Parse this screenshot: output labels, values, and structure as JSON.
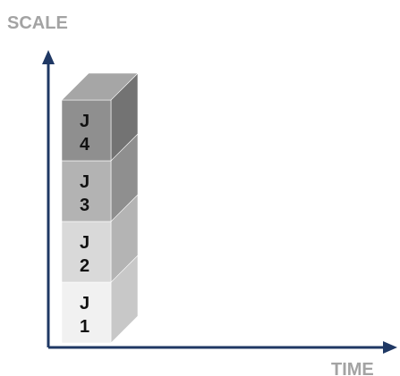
{
  "axes": {
    "y_title": "SCALE",
    "x_title": "TIME",
    "title_color": "#a3a3a3",
    "axis_color": "#1f3864"
  },
  "blocks": [
    {
      "prefix": "J",
      "number": "1",
      "front": "#f1f1f1",
      "side": "#c8c8c8",
      "top": "#dcdcdc"
    },
    {
      "prefix": "J",
      "number": "2",
      "front": "#d9d9d9",
      "side": "#b4b4b4",
      "top": "#c6c6c6"
    },
    {
      "prefix": "J",
      "number": "3",
      "front": "#b3b3b3",
      "side": "#8f8f8f",
      "top": "#a2a2a2"
    },
    {
      "prefix": "J",
      "number": "4",
      "front": "#8f8f8f",
      "side": "#737373",
      "top": "#a6a6a6"
    }
  ],
  "label_color": "#111111"
}
